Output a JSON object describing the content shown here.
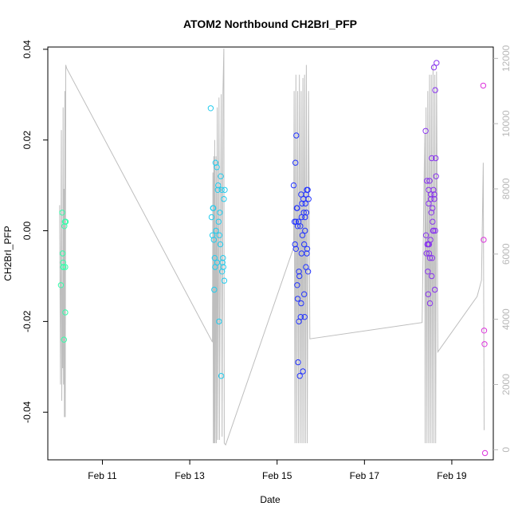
{
  "chart_data": {
    "type": "scatter",
    "title": "ATOM2 Northbound CH2BrI_PFP",
    "xlabel": "Date",
    "ylabel": "CH2BrI_PFP",
    "x_tick_labels": [
      "Feb 11",
      "Feb 13",
      "Feb 15",
      "Feb 17",
      "Feb 19"
    ],
    "x_tick_days": [
      11,
      13,
      15,
      17,
      19
    ],
    "xlim": [
      9.75,
      19.95
    ],
    "ylim": [
      -0.0505,
      0.0405
    ],
    "y_ticks": [
      -0.04,
      -0.02,
      0.0,
      0.02,
      0.04
    ],
    "y_tick_labels": [
      "-0.04",
      "-0.02",
      "0.00",
      "0.02",
      "0.04"
    ],
    "y2_ticks": [
      0,
      2000,
      4000,
      6000,
      8000,
      10000,
      12000
    ],
    "y2_tick_labels": [
      "0",
      "2000",
      "4000",
      "6000",
      "8000",
      "10000",
      "12000"
    ],
    "y2lim": [
      -310,
      12350
    ],
    "grid": false,
    "legend": "none",
    "colors": {
      "altitude_line": "#bebebe",
      "axis": "#000000",
      "right_axis": "#b8b8b8",
      "flights": [
        "#33ffaa",
        "#22ccee",
        "#2233ff",
        "#8833ee",
        "#dd33dd"
      ]
    },
    "series": [
      {
        "day": 10.1,
        "points": [
          [
            10.05,
            -0.012
          ],
          [
            10.08,
            0.004
          ],
          [
            10.09,
            -0.005
          ],
          [
            10.1,
            -0.007
          ],
          [
            10.1,
            -0.008
          ],
          [
            10.11,
            -0.008
          ],
          [
            10.12,
            -0.024
          ],
          [
            10.13,
            0.001
          ],
          [
            10.14,
            0.002
          ],
          [
            10.15,
            -0.008
          ],
          [
            10.16,
            0.002
          ],
          [
            10.15,
            -0.018
          ]
        ]
      },
      {
        "day": 13.6,
        "points": [
          [
            13.48,
            0.027
          ],
          [
            13.5,
            0.003
          ],
          [
            13.52,
            -0.001
          ],
          [
            13.53,
            0.005
          ],
          [
            13.54,
            0.005
          ],
          [
            13.55,
            -0.002
          ],
          [
            13.56,
            -0.013
          ],
          [
            13.57,
            -0.006
          ],
          [
            13.58,
            -0.008
          ],
          [
            13.59,
            0.015
          ],
          [
            13.6,
            0.0
          ],
          [
            13.62,
            0.014
          ],
          [
            13.63,
            -0.007
          ],
          [
            13.64,
            0.009
          ],
          [
            13.65,
            0.01
          ],
          [
            13.66,
            0.002
          ],
          [
            13.67,
            -0.02
          ],
          [
            13.68,
            -0.001
          ],
          [
            13.69,
            0.004
          ],
          [
            13.7,
            -0.003
          ],
          [
            13.71,
            0.012
          ],
          [
            13.72,
            -0.032
          ],
          [
            13.73,
            0.009
          ],
          [
            13.74,
            -0.009
          ],
          [
            13.75,
            -0.007
          ],
          [
            13.76,
            -0.006
          ],
          [
            13.77,
            -0.008
          ],
          [
            13.78,
            0.007
          ],
          [
            13.79,
            -0.011
          ],
          [
            13.8,
            0.009
          ]
        ]
      },
      {
        "day": 15.5,
        "points": [
          [
            15.38,
            0.01
          ],
          [
            15.4,
            0.002
          ],
          [
            15.41,
            -0.003
          ],
          [
            15.42,
            0.015
          ],
          [
            15.43,
            -0.004
          ],
          [
            15.44,
            0.021
          ],
          [
            15.45,
            0.005
          ],
          [
            15.46,
            -0.012
          ],
          [
            15.47,
            -0.015
          ],
          [
            15.48,
            -0.029
          ],
          [
            15.49,
            0.002
          ],
          [
            15.5,
            -0.02
          ],
          [
            15.51,
            -0.01
          ],
          [
            15.52,
            -0.032
          ],
          [
            15.53,
            0.001
          ],
          [
            15.54,
            -0.019
          ],
          [
            15.55,
            0.008
          ],
          [
            15.56,
            -0.005
          ],
          [
            15.57,
            0.006
          ],
          [
            15.58,
            -0.001
          ],
          [
            15.59,
            -0.031
          ],
          [
            15.6,
            0.007
          ],
          [
            15.61,
            0.004
          ],
          [
            15.62,
            -0.014
          ],
          [
            15.63,
            -0.019
          ],
          [
            15.64,
            0.0
          ],
          [
            15.65,
            0.006
          ],
          [
            15.66,
            -0.008
          ],
          [
            15.67,
            0.004
          ],
          [
            15.68,
            0.009
          ],
          [
            15.69,
            -0.004
          ],
          [
            15.7,
            0.009
          ],
          [
            15.71,
            -0.009
          ],
          [
            15.72,
            0.007
          ],
          [
            15.43,
            0.002
          ],
          [
            15.47,
            0.001
          ],
          [
            15.46,
            0.005
          ],
          [
            15.5,
            -0.009
          ],
          [
            15.55,
            -0.016
          ],
          [
            15.62,
            -0.003
          ],
          [
            15.64,
            0.003
          ],
          [
            15.66,
            0.008
          ],
          [
            15.68,
            -0.005
          ],
          [
            15.56,
            0.003
          ]
        ]
      },
      {
        "day": 18.6,
        "points": [
          [
            18.4,
            0.022
          ],
          [
            18.41,
            -0.001
          ],
          [
            18.42,
            -0.005
          ],
          [
            18.43,
            0.011
          ],
          [
            18.44,
            -0.003
          ],
          [
            18.45,
            -0.009
          ],
          [
            18.46,
            -0.014
          ],
          [
            18.47,
            0.006
          ],
          [
            18.48,
            -0.003
          ],
          [
            18.49,
            0.011
          ],
          [
            18.5,
            -0.016
          ],
          [
            18.51,
            -0.002
          ],
          [
            18.52,
            0.008
          ],
          [
            18.53,
            0.004
          ],
          [
            18.54,
            0.016
          ],
          [
            18.55,
            -0.006
          ],
          [
            18.56,
            0.002
          ],
          [
            18.57,
            0.0
          ],
          [
            18.58,
            0.009
          ],
          [
            18.59,
            0.036
          ],
          [
            18.6,
            0.007
          ],
          [
            18.61,
            -0.013
          ],
          [
            18.62,
            0.031
          ],
          [
            18.63,
            0.016
          ],
          [
            18.64,
            0.012
          ],
          [
            18.65,
            0.037
          ],
          [
            18.46,
            -0.003
          ],
          [
            18.48,
            -0.005
          ],
          [
            18.5,
            -0.006
          ],
          [
            18.52,
            0.007
          ],
          [
            18.54,
            -0.01
          ],
          [
            18.56,
            0.005
          ],
          [
            18.58,
            0.0
          ],
          [
            18.6,
            0.008
          ],
          [
            18.47,
            0.009
          ],
          [
            18.62,
            0.0
          ]
        ]
      },
      {
        "day": 19.7,
        "points": [
          [
            19.72,
            0.032
          ],
          [
            19.73,
            -0.002
          ],
          [
            19.74,
            -0.022
          ],
          [
            19.75,
            -0.025
          ],
          [
            19.76,
            -0.049
          ]
        ]
      }
    ],
    "altitude_profile": [
      [
        10.02,
        7500
      ],
      [
        10.04,
        2000
      ],
      [
        10.06,
        9800
      ],
      [
        10.07,
        1500
      ],
      [
        10.08,
        5000
      ],
      [
        10.09,
        2500
      ],
      [
        10.1,
        10500
      ],
      [
        10.11,
        2000
      ],
      [
        10.12,
        8000
      ],
      [
        10.13,
        1000
      ],
      [
        10.14,
        11000
      ],
      [
        10.15,
        1000
      ],
      [
        10.16,
        11800
      ],
      [
        10.18,
        11700
      ],
      [
        13.52,
        3300
      ],
      [
        13.53,
        8500
      ],
      [
        13.54,
        200
      ],
      [
        13.55,
        9000
      ],
      [
        13.56,
        200
      ],
      [
        13.57,
        9500
      ],
      [
        13.58,
        200
      ],
      [
        13.6,
        9000
      ],
      [
        13.61,
        200
      ],
      [
        13.63,
        10500
      ],
      [
        13.64,
        300
      ],
      [
        13.67,
        10800
      ],
      [
        13.68,
        300
      ],
      [
        13.72,
        10900
      ],
      [
        13.74,
        400
      ],
      [
        13.76,
        11000
      ],
      [
        13.78,
        12300
      ],
      [
        13.79,
        200
      ],
      [
        13.82,
        150
      ],
      [
        15.38,
        6200
      ],
      [
        15.39,
        11000
      ],
      [
        15.41,
        200
      ],
      [
        15.43,
        11500
      ],
      [
        15.45,
        200
      ],
      [
        15.47,
        11000
      ],
      [
        15.49,
        200
      ],
      [
        15.51,
        11500
      ],
      [
        15.53,
        200
      ],
      [
        15.55,
        11000
      ],
      [
        15.57,
        200
      ],
      [
        15.59,
        11400
      ],
      [
        15.61,
        200
      ],
      [
        15.63,
        11500
      ],
      [
        15.65,
        200
      ],
      [
        15.67,
        11800
      ],
      [
        15.69,
        200
      ],
      [
        15.72,
        11000
      ],
      [
        15.75,
        3400
      ],
      [
        18.32,
        3900
      ],
      [
        18.38,
        9700
      ],
      [
        18.39,
        200
      ],
      [
        18.41,
        10500
      ],
      [
        18.43,
        200
      ],
      [
        18.45,
        11000
      ],
      [
        18.47,
        200
      ],
      [
        18.49,
        11500
      ],
      [
        18.51,
        200
      ],
      [
        18.53,
        11500
      ],
      [
        18.55,
        200
      ],
      [
        18.57,
        11800
      ],
      [
        18.59,
        200
      ],
      [
        18.61,
        11500
      ],
      [
        18.63,
        200
      ],
      [
        18.65,
        11600
      ],
      [
        18.68,
        3000
      ],
      [
        19.58,
        4700
      ],
      [
        19.68,
        5200
      ],
      [
        19.72,
        8800
      ],
      [
        19.74,
        600
      ]
    ]
  }
}
